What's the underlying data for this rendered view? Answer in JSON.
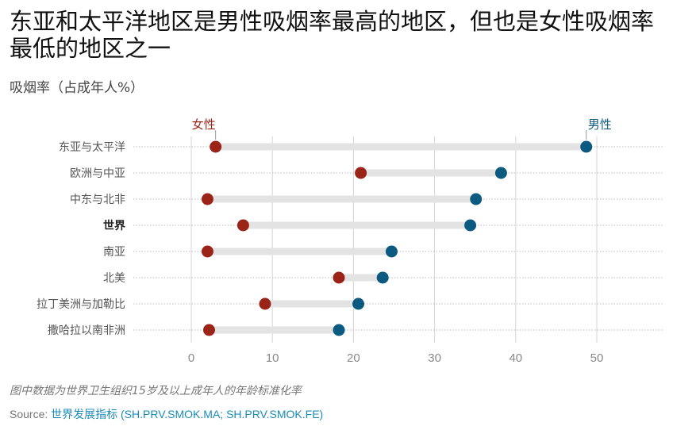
{
  "header": {
    "title": "东亚和太平洋地区是男性吸烟率最高的地区，但也是女性吸烟率最低的地区之一",
    "ylabel": "吸烟率（占成年人%）"
  },
  "footer": {
    "note": "图中数据为世界卫生组织15岁及以上成年人的年龄标准化率",
    "source_label": "Source: ",
    "source_link": "世界发展指标 (SH.PRV.SMOK.MA; SH.PRV.SMOK.FE)"
  },
  "chart_data": {
    "type": "dumbbell",
    "title": "东亚和太平洋地区是男性吸烟率最高的地区，但也是女性吸烟率最低的地区之一",
    "ylabel": "吸烟率（占成年人%）",
    "categories": [
      "东亚与太平洋",
      "欧洲与中亚",
      "中东与北非",
      "世界",
      "南亚",
      "北美",
      "拉丁美洲与加勒比",
      "撒哈拉以南非洲"
    ],
    "bold_category": "世界",
    "series": [
      {
        "name": "女性",
        "color": "#9b2418",
        "values": [
          3.0,
          20.9,
          2.0,
          6.4,
          2.0,
          18.2,
          9.1,
          2.2
        ]
      },
      {
        "name": "男性",
        "color": "#0c5a80",
        "values": [
          48.7,
          38.2,
          35.1,
          34.4,
          24.7,
          23.6,
          20.6,
          18.2
        ]
      }
    ],
    "xlim": [
      0,
      58
    ],
    "xticks": [
      0,
      10,
      20,
      30,
      40,
      50
    ],
    "grid": true,
    "legend": "top, labels above first row"
  }
}
